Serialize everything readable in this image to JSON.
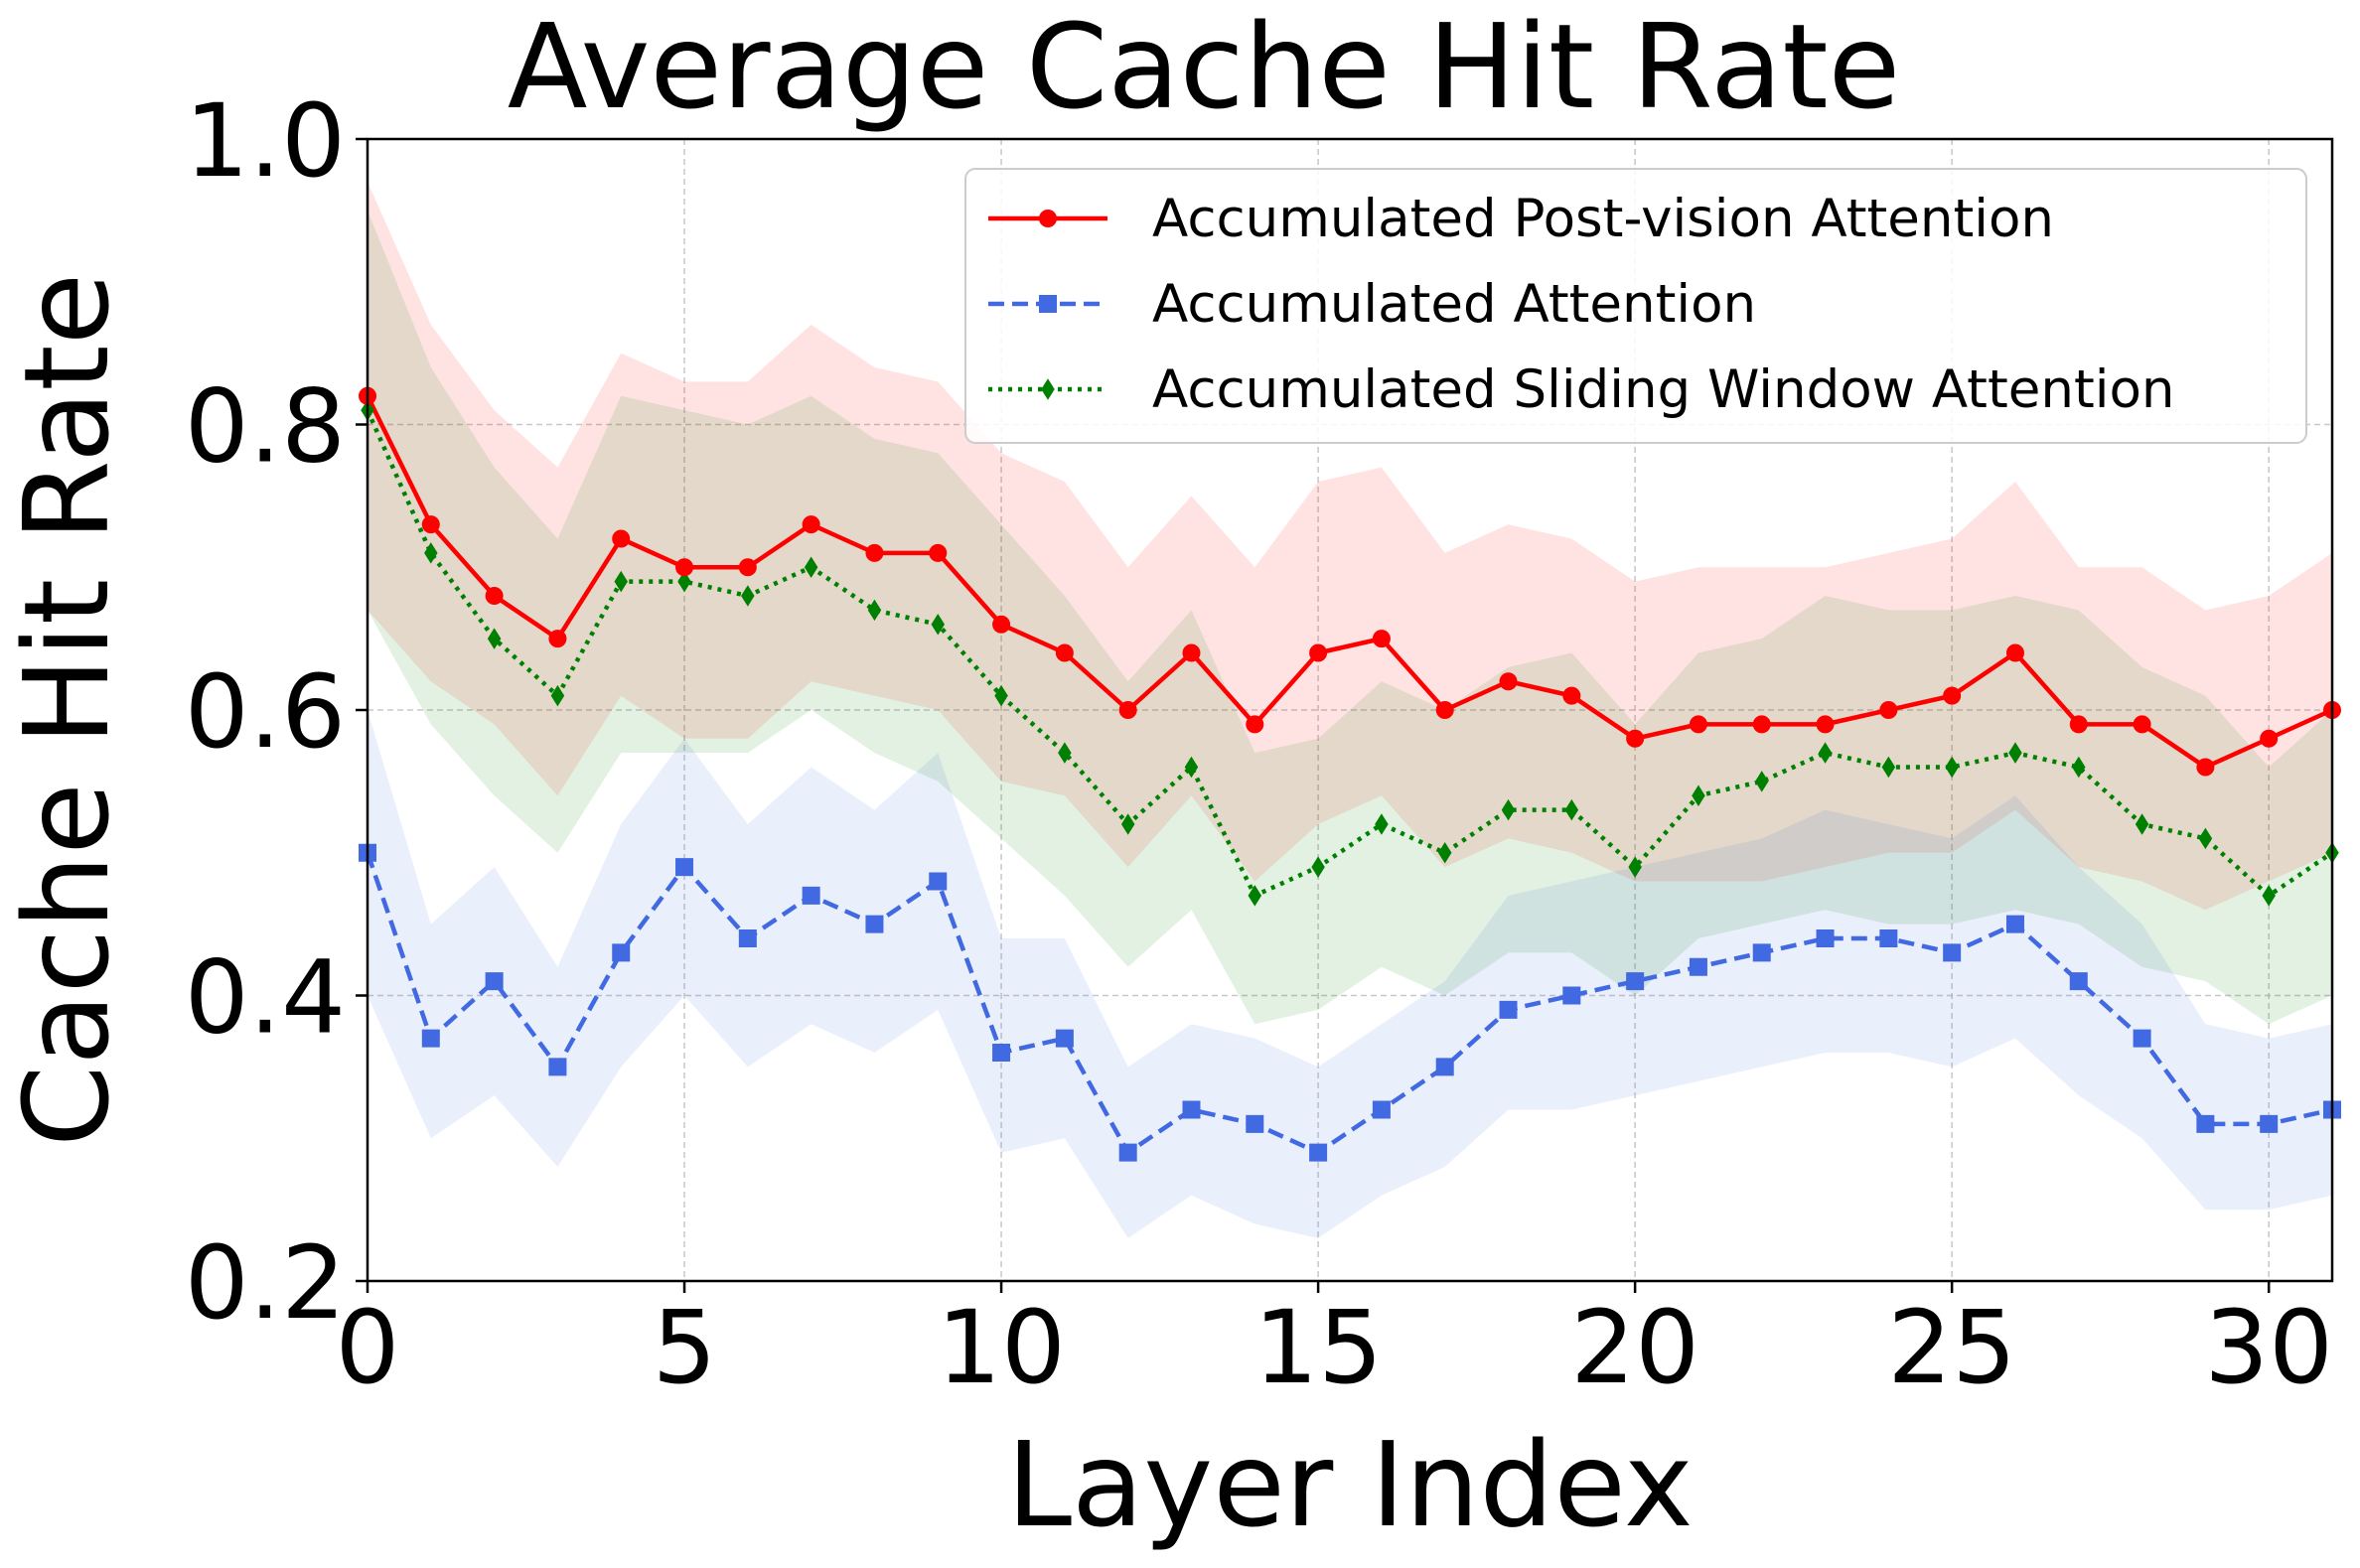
{
  "chart_data": {
    "type": "line",
    "title": "Average Cache Hit Rate",
    "xlabel": "Layer Index",
    "ylabel": "Cache Hit Rate",
    "xlim": [
      0,
      31
    ],
    "ylim": [
      0.2,
      1.0
    ],
    "xticks": [
      0,
      5,
      10,
      15,
      20,
      25,
      30
    ],
    "xtick_labels": [
      "0",
      "5",
      "10",
      "15",
      "20",
      "25",
      "30"
    ],
    "yticks": [
      0.2,
      0.4,
      0.6,
      0.8,
      1.0
    ],
    "ytick_labels": [
      "0.2",
      "0.4",
      "0.6",
      "0.8",
      "1.0"
    ],
    "grid": true,
    "legend_position": "top-right",
    "x": [
      0,
      1,
      2,
      3,
      4,
      5,
      6,
      7,
      8,
      9,
      10,
      11,
      12,
      13,
      14,
      15,
      16,
      17,
      18,
      19,
      20,
      21,
      22,
      23,
      24,
      25,
      26,
      27,
      28,
      29,
      30,
      31
    ],
    "series": [
      {
        "name": "Accumulated Post-vision Attention",
        "color": "#ff0000",
        "linestyle": "solid",
        "marker": "circle",
        "values": [
          0.82,
          0.73,
          0.68,
          0.65,
          0.72,
          0.7,
          0.7,
          0.73,
          0.71,
          0.71,
          0.66,
          0.64,
          0.6,
          0.64,
          0.59,
          0.64,
          0.65,
          0.6,
          0.62,
          0.61,
          0.58,
          0.59,
          0.59,
          0.59,
          0.6,
          0.61,
          0.64,
          0.59,
          0.59,
          0.56,
          0.58,
          0.6
        ],
        "lower": [
          0.67,
          0.62,
          0.59,
          0.54,
          0.61,
          0.58,
          0.58,
          0.62,
          0.61,
          0.6,
          0.55,
          0.54,
          0.49,
          0.54,
          0.48,
          0.52,
          0.54,
          0.49,
          0.51,
          0.5,
          0.48,
          0.48,
          0.48,
          0.49,
          0.5,
          0.5,
          0.53,
          0.49,
          0.48,
          0.46,
          0.48,
          0.5
        ],
        "upper": [
          0.97,
          0.87,
          0.81,
          0.77,
          0.85,
          0.83,
          0.83,
          0.87,
          0.84,
          0.83,
          0.78,
          0.76,
          0.7,
          0.75,
          0.7,
          0.76,
          0.77,
          0.71,
          0.73,
          0.72,
          0.69,
          0.7,
          0.7,
          0.7,
          0.71,
          0.72,
          0.76,
          0.7,
          0.7,
          0.67,
          0.68,
          0.71
        ]
      },
      {
        "name": "Accumulated Attention",
        "color": "#4169e1",
        "linestyle": "dashed",
        "marker": "square",
        "values": [
          0.5,
          0.37,
          0.41,
          0.35,
          0.43,
          0.49,
          0.44,
          0.47,
          0.45,
          0.48,
          0.36,
          0.37,
          0.29,
          0.32,
          0.31,
          0.29,
          0.32,
          0.35,
          0.39,
          0.4,
          0.41,
          0.42,
          0.43,
          0.44,
          0.44,
          0.43,
          0.45,
          0.41,
          0.37,
          0.31,
          0.31,
          0.32
        ],
        "lower": [
          0.4,
          0.3,
          0.33,
          0.28,
          0.35,
          0.4,
          0.35,
          0.38,
          0.36,
          0.39,
          0.29,
          0.3,
          0.23,
          0.26,
          0.24,
          0.23,
          0.26,
          0.28,
          0.32,
          0.32,
          0.33,
          0.34,
          0.35,
          0.36,
          0.36,
          0.35,
          0.37,
          0.33,
          0.3,
          0.25,
          0.25,
          0.26
        ],
        "upper": [
          0.6,
          0.45,
          0.49,
          0.42,
          0.52,
          0.58,
          0.52,
          0.56,
          0.53,
          0.57,
          0.44,
          0.44,
          0.35,
          0.38,
          0.37,
          0.35,
          0.38,
          0.41,
          0.47,
          0.48,
          0.49,
          0.5,
          0.51,
          0.53,
          0.52,
          0.51,
          0.54,
          0.49,
          0.45,
          0.38,
          0.37,
          0.38
        ]
      },
      {
        "name": "Accumulated Sliding Window Attention",
        "color": "#008000",
        "linestyle": "dotted",
        "marker": "diamond",
        "values": [
          0.81,
          0.71,
          0.65,
          0.61,
          0.69,
          0.69,
          0.68,
          0.7,
          0.67,
          0.66,
          0.61,
          0.57,
          0.52,
          0.56,
          0.47,
          0.49,
          0.52,
          0.5,
          0.53,
          0.53,
          0.49,
          0.54,
          0.55,
          0.57,
          0.56,
          0.56,
          0.57,
          0.56,
          0.52,
          0.51,
          0.47,
          0.5
        ],
        "lower": [
          0.67,
          0.59,
          0.54,
          0.5,
          0.57,
          0.57,
          0.57,
          0.6,
          0.57,
          0.55,
          0.51,
          0.47,
          0.42,
          0.46,
          0.38,
          0.39,
          0.42,
          0.4,
          0.43,
          0.43,
          0.4,
          0.44,
          0.45,
          0.46,
          0.45,
          0.45,
          0.46,
          0.45,
          0.42,
          0.41,
          0.38,
          0.4
        ],
        "upper": [
          0.95,
          0.84,
          0.77,
          0.72,
          0.82,
          0.81,
          0.8,
          0.82,
          0.79,
          0.78,
          0.73,
          0.68,
          0.62,
          0.67,
          0.57,
          0.58,
          0.62,
          0.6,
          0.63,
          0.64,
          0.59,
          0.64,
          0.65,
          0.68,
          0.67,
          0.67,
          0.68,
          0.67,
          0.63,
          0.61,
          0.56,
          0.6
        ]
      }
    ]
  }
}
